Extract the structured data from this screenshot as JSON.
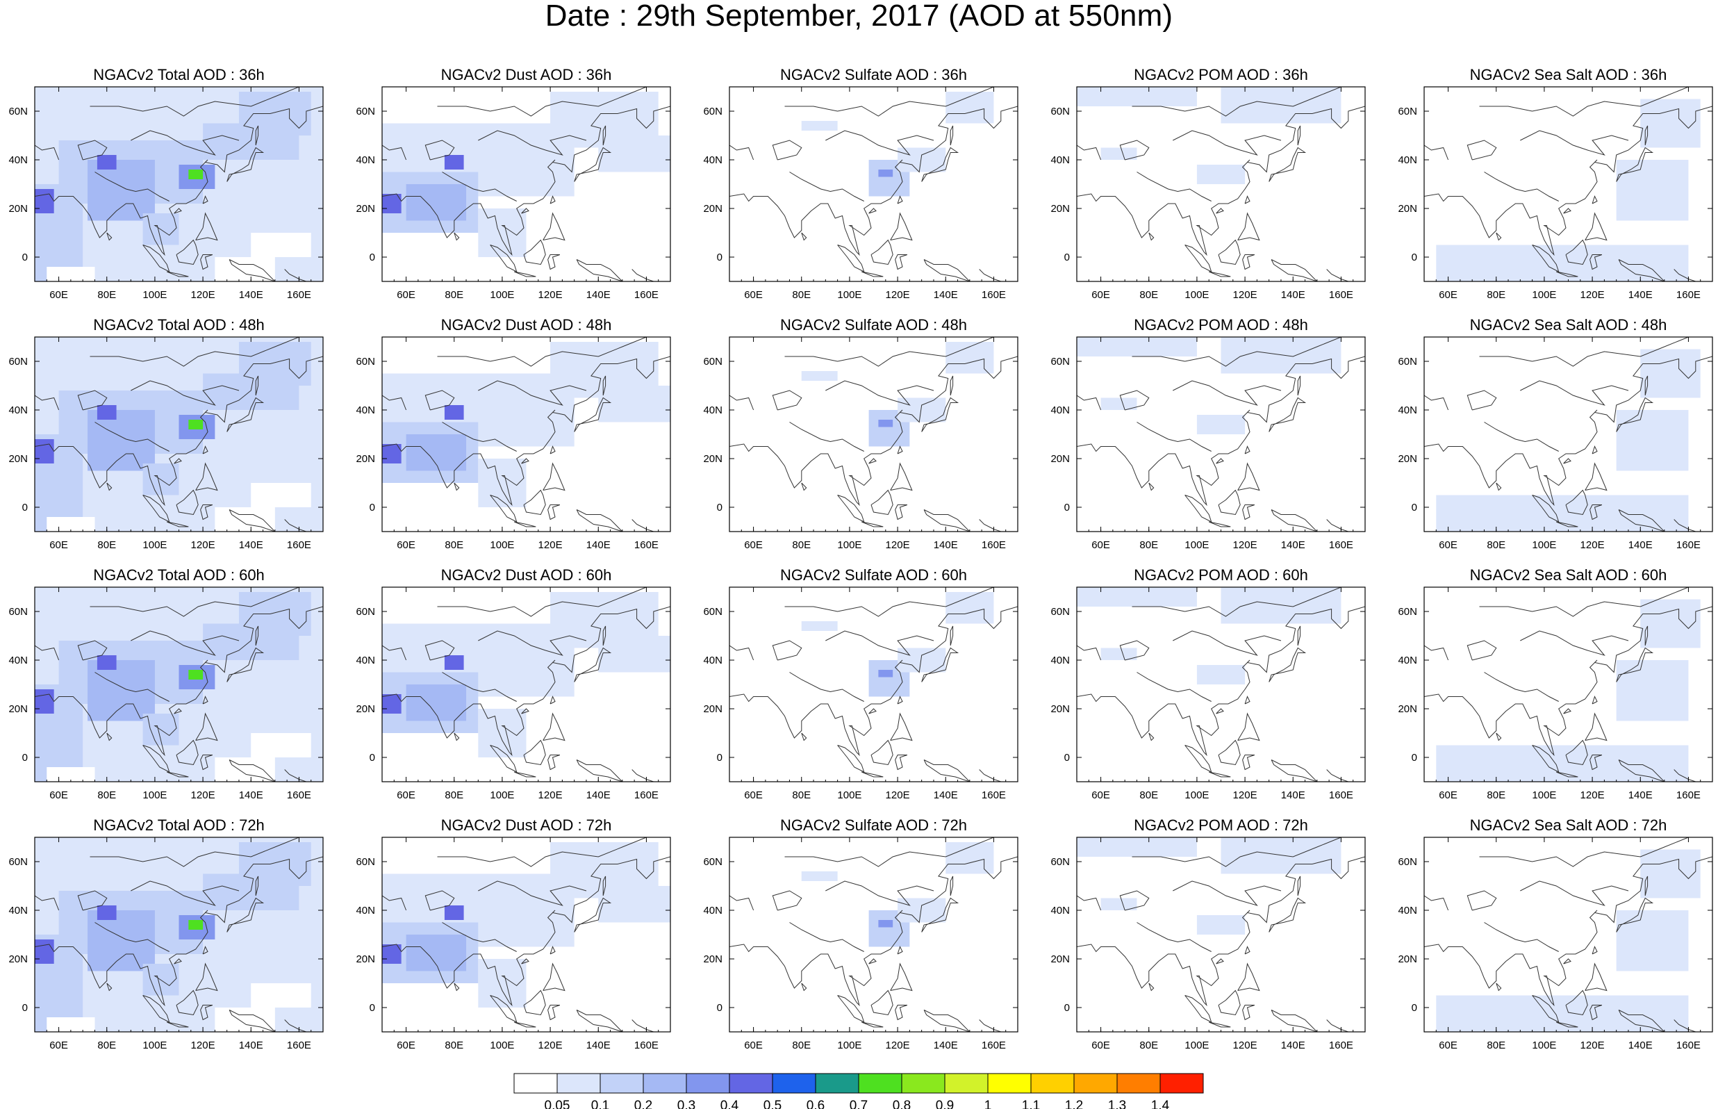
{
  "title": "Date : 29th September, 2017 (AOD at 550nm)",
  "panels": [
    {
      "title": "NGACv2 Total AOD : 36h",
      "type": "total"
    },
    {
      "title": "NGACv2 Dust AOD : 36h",
      "type": "dust"
    },
    {
      "title": "NGACv2 Sulfate AOD : 36h",
      "type": "sulfate"
    },
    {
      "title": "NGACv2 POM AOD : 36h",
      "type": "pom"
    },
    {
      "title": "NGACv2 Sea Salt AOD : 36h",
      "type": "seasalt"
    },
    {
      "title": "NGACv2 Total AOD : 48h",
      "type": "total"
    },
    {
      "title": "NGACv2 Dust AOD : 48h",
      "type": "dust"
    },
    {
      "title": "NGACv2 Sulfate AOD : 48h",
      "type": "sulfate"
    },
    {
      "title": "NGACv2 POM AOD : 48h",
      "type": "pom"
    },
    {
      "title": "NGACv2 Sea Salt AOD : 48h",
      "type": "seasalt"
    },
    {
      "title": "NGACv2 Total AOD : 60h",
      "type": "total"
    },
    {
      "title": "NGACv2 Dust AOD : 60h",
      "type": "dust"
    },
    {
      "title": "NGACv2 Sulfate AOD : 60h",
      "type": "sulfate"
    },
    {
      "title": "NGACv2 POM AOD : 60h",
      "type": "pom"
    },
    {
      "title": "NGACv2 Sea Salt AOD : 60h",
      "type": "seasalt"
    },
    {
      "title": "NGACv2 Total AOD : 72h",
      "type": "total"
    },
    {
      "title": "NGACv2 Dust AOD : 72h",
      "type": "dust"
    },
    {
      "title": "NGACv2 Sulfate AOD : 72h",
      "type": "sulfate"
    },
    {
      "title": "NGACv2 POM AOD : 72h",
      "type": "pom"
    },
    {
      "title": "NGACv2 Sea Salt  AOD : 72h",
      "type": "seasalt"
    }
  ],
  "map_axes": {
    "lon_ticks": [
      "60E",
      "80E",
      "100E",
      "120E",
      "140E",
      "160E"
    ],
    "lat_ticks": [
      "60N",
      "40N",
      "20N",
      "0"
    ],
    "lon_range": [
      50,
      170
    ],
    "lat_range": [
      -10,
      70
    ]
  },
  "colorbar": {
    "labels": [
      "0.05",
      "0.1",
      "0.2",
      "0.3",
      "0.4",
      "0.5",
      "0.6",
      "0.7",
      "0.8",
      "0.9",
      "1",
      "1.1",
      "1.2",
      "1.3",
      "1.4"
    ],
    "colors": [
      "#ffffff",
      "#dce6fb",
      "#c2d2f8",
      "#a5b9f4",
      "#8296ee",
      "#6366e4",
      "#1e62ec",
      "#1a9a8a",
      "#4ee020",
      "#8ae81e",
      "#d2f22a",
      "#ffff00",
      "#ffd000",
      "#ffa800",
      "#ff7e00",
      "#ff2000"
    ]
  }
}
